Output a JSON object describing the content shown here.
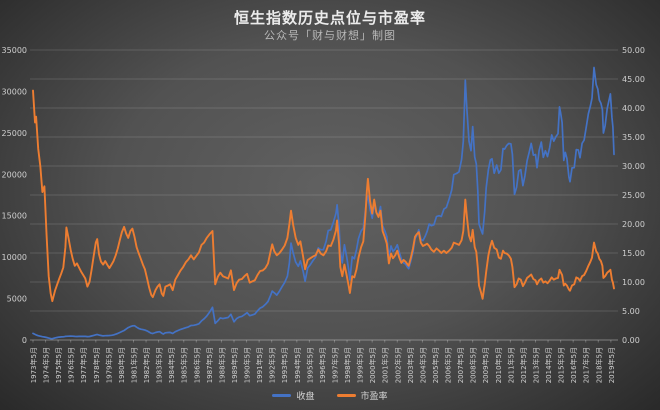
{
  "header": {
    "title": "恒生指数历史点位与市盈率",
    "subtitle": "公众号「财与财想」制图"
  },
  "legend": [
    {
      "label": "收盘",
      "color": "#4472C4"
    },
    {
      "label": "市盈率",
      "color": "#ED7D31"
    }
  ],
  "colors": {
    "background_center": "#616161",
    "background_edge": "#262626",
    "gridline": "rgba(255,255,255,0.14)",
    "axis_line": "rgba(255,255,255,0.35)",
    "tick_text": "#cfcfcf",
    "close_line": "#4472C4",
    "pe_line": "#ED7D31"
  },
  "chart_data": {
    "type": "line",
    "title": "恒生指数历史点位与市盈率",
    "subtitle": "公众号「财与财想」制图",
    "legend_position": "bottom",
    "grid": "horizontal gridlines aligned to right axis ticks",
    "y_left": {
      "series": "收盘",
      "min": 0,
      "max": 35000,
      "ticks": [
        0,
        5000,
        10000,
        15000,
        20000,
        25000,
        30000,
        35000
      ],
      "tick_labels": [
        "0",
        "5000",
        "10000",
        "15000",
        "20000",
        "25000",
        "30000",
        "35000"
      ]
    },
    "y_right": {
      "series": "市盈率",
      "min": 0,
      "max": 50,
      "ticks": [
        0,
        5,
        10,
        15,
        20,
        25,
        30,
        35,
        40,
        45,
        50
      ],
      "tick_labels": [
        "0.00",
        "5.00",
        "10.00",
        "15.00",
        "20.00",
        "25.00",
        "30.00",
        "35.00",
        "40.00",
        "45.00",
        "50.00"
      ]
    },
    "x_axis": {
      "first_label": "1973年5月",
      "last_label": "2019年5月",
      "labels": [
        "1973年5月",
        "1974年5月",
        "1975年5月",
        "1976年5月",
        "1977年5月",
        "1978年5月",
        "1979年5月",
        "1980年5月",
        "1981年5月",
        "1982年5月",
        "1983年5月",
        "1984年5月",
        "1985年5月",
        "1986年5月",
        "1987年5月",
        "1988年5月",
        "1989年5月",
        "1990年5月",
        "1991年5月",
        "1992年5月",
        "1993年5月",
        "1994年5月",
        "1995年5月",
        "1996年5月",
        "1997年5月",
        "1998年5月",
        "1999年5月",
        "2000年5月",
        "2001年5月",
        "2002年5月",
        "2003年5月",
        "2004年5月",
        "2005年5月",
        "2006年5月",
        "2007年5月",
        "2008年5月",
        "2009年5月",
        "2010年5月",
        "2011年5月",
        "2012年5月",
        "2013年5月",
        "2014年5月",
        "2015年5月",
        "2016年5月",
        "2017年5月",
        "2018年5月",
        "2019年5月"
      ],
      "label_years_decimal_start": 1973.42
    },
    "x": [
      1973.42,
      1973.58,
      1973.67,
      1973.83,
      1974.0,
      1974.17,
      1974.33,
      1974.5,
      1974.67,
      1974.83,
      1974.96,
      1975.17,
      1975.33,
      1975.5,
      1975.67,
      1975.83,
      1976.0,
      1976.08,
      1976.25,
      1976.42,
      1976.58,
      1976.75,
      1976.92,
      1977.08,
      1977.25,
      1977.42,
      1977.58,
      1977.75,
      1977.92,
      1978.08,
      1978.25,
      1978.42,
      1978.53,
      1978.67,
      1978.83,
      1979.0,
      1979.17,
      1979.33,
      1979.5,
      1979.67,
      1979.83,
      1980.0,
      1980.17,
      1980.33,
      1980.5,
      1980.67,
      1980.83,
      1981.0,
      1981.17,
      1981.33,
      1981.5,
      1981.67,
      1981.83,
      1982.0,
      1982.17,
      1982.33,
      1982.5,
      1982.67,
      1982.83,
      1982.96,
      1983.17,
      1983.33,
      1983.5,
      1983.67,
      1983.79,
      1983.96,
      1984.17,
      1984.33,
      1984.54,
      1984.75,
      1984.96,
      1985.17,
      1985.38,
      1985.58,
      1985.79,
      1986.0,
      1986.21,
      1986.42,
      1986.63,
      1986.83,
      1987.04,
      1987.25,
      1987.46,
      1987.71,
      1987.92,
      1988.13,
      1988.33,
      1988.54,
      1988.75,
      1988.96,
      1989.17,
      1989.42,
      1989.63,
      1989.83,
      1990.04,
      1990.25,
      1990.46,
      1990.67,
      1990.88,
      1991.08,
      1991.29,
      1991.5,
      1991.71,
      1991.92,
      1992.13,
      1992.33,
      1992.46,
      1992.63,
      1992.83,
      1993.04,
      1993.25,
      1993.46,
      1993.67,
      1993.83,
      1993.96,
      1994.13,
      1994.33,
      1994.54,
      1994.71,
      1994.92,
      1995.08,
      1995.29,
      1995.5,
      1995.71,
      1995.92,
      1996.13,
      1996.33,
      1996.54,
      1996.75,
      1996.92,
      1997.13,
      1997.33,
      1997.54,
      1997.63,
      1997.79,
      1997.88,
      1998.04,
      1998.21,
      1998.38,
      1998.54,
      1998.65,
      1998.83,
      1999.0,
      1999.17,
      1999.33,
      1999.54,
      1999.71,
      1999.88,
      2000.0,
      2000.08,
      2000.25,
      2000.42,
      2000.58,
      2000.75,
      2000.92,
      2001.08,
      2001.25,
      2001.42,
      2001.58,
      2001.75,
      2001.92,
      2002.08,
      2002.25,
      2002.42,
      2002.58,
      2002.75,
      2002.92,
      2003.08,
      2003.25,
      2003.33,
      2003.5,
      2003.67,
      2003.83,
      2003.96,
      2004.13,
      2004.29,
      2004.46,
      2004.63,
      2004.79,
      2004.96,
      2005.13,
      2005.33,
      2005.54,
      2005.75,
      2005.92,
      2006.13,
      2006.33,
      2006.54,
      2006.75,
      2006.92,
      2007.13,
      2007.33,
      2007.54,
      2007.67,
      2007.83,
      2007.96,
      2008.13,
      2008.29,
      2008.42,
      2008.58,
      2008.71,
      2008.83,
      2008.92,
      2009.08,
      2009.21,
      2009.38,
      2009.5,
      2009.67,
      2009.83,
      2009.96,
      2010.13,
      2010.33,
      2010.5,
      2010.67,
      2010.83,
      2010.96,
      2011.13,
      2011.29,
      2011.46,
      2011.58,
      2011.75,
      2011.92,
      2012.08,
      2012.25,
      2012.42,
      2012.58,
      2012.75,
      2012.92,
      2013.08,
      2013.25,
      2013.42,
      2013.54,
      2013.71,
      2013.88,
      2014.04,
      2014.21,
      2014.38,
      2014.54,
      2014.71,
      2014.88,
      2015.04,
      2015.21,
      2015.33,
      2015.42,
      2015.54,
      2015.67,
      2015.79,
      2015.92,
      2016.08,
      2016.17,
      2016.33,
      2016.5,
      2016.67,
      2016.83,
      2016.96,
      2017.13,
      2017.29,
      2017.46,
      2017.63,
      2017.79,
      2017.92,
      2018.08,
      2018.25,
      2018.38,
      2018.5,
      2018.63,
      2018.75,
      2018.83,
      2018.96,
      2019.13,
      2019.29,
      2019.38,
      2019.5,
      2019.58,
      2019.67
    ],
    "series": [
      {
        "name": "收盘",
        "axis": "left",
        "color": "#4472C4",
        "values": [
          800,
          680,
          620,
          520,
          460,
          400,
          360,
          300,
          230,
          170,
          160,
          250,
          300,
          350,
          370,
          390,
          430,
          445,
          455,
          465,
          455,
          440,
          425,
          430,
          435,
          440,
          430,
          415,
          420,
          480,
          560,
          630,
          660,
          590,
          540,
          500,
          520,
          535,
          545,
          570,
          610,
          700,
          800,
          900,
          1020,
          1150,
          1320,
          1500,
          1620,
          1700,
          1720,
          1550,
          1400,
          1300,
          1250,
          1200,
          1100,
          950,
          820,
          780,
          900,
          960,
          1000,
          820,
          720,
          870,
          900,
          920,
          800,
          1000,
          1150,
          1280,
          1380,
          1480,
          1580,
          1750,
          1780,
          1850,
          1950,
          2300,
          2560,
          2880,
          3330,
          3950,
          2000,
          2320,
          2670,
          2580,
          2660,
          2720,
          3100,
          2200,
          2580,
          2760,
          2850,
          3050,
          3300,
          2930,
          3030,
          3130,
          3520,
          3850,
          4010,
          4300,
          4650,
          5400,
          5900,
          5700,
          5420,
          5900,
          6450,
          6950,
          7700,
          9300,
          11700,
          10500,
          9400,
          8900,
          9550,
          8300,
          7100,
          8700,
          9100,
          9600,
          10000,
          11100,
          10900,
          10900,
          11900,
          13200,
          13300,
          14200,
          15300,
          16300,
          13700,
          10700,
          9300,
          11500,
          10100,
          8550,
          7250,
          10050,
          9800,
          10900,
          12250,
          13150,
          13500,
          15700,
          16960,
          17400,
          15800,
          14700,
          16400,
          15400,
          15100,
          16100,
          13800,
          13200,
          12500,
          10000,
          11350,
          10700,
          11000,
          11500,
          10600,
          9750,
          9320,
          9150,
          8750,
          8600,
          9600,
          10600,
          12200,
          12550,
          13300,
          12200,
          12000,
          12500,
          13100,
          14000,
          13800,
          13900,
          14900,
          15000,
          14900,
          15800,
          16000,
          17000,
          18100,
          19960,
          20100,
          20300,
          21800,
          23980,
          31350,
          27810,
          24000,
          22850,
          25750,
          22100,
          21260,
          18000,
          14000,
          13300,
          12810,
          15520,
          18380,
          20570,
          21750,
          21870,
          20120,
          21110,
          20130,
          20540,
          23100,
          23040,
          23480,
          23720,
          23680,
          22400,
          17590,
          18430,
          20390,
          20560,
          18630,
          19800,
          21640,
          22660,
          23730,
          22300,
          22390,
          20800,
          22860,
          23880,
          22040,
          22840,
          22130,
          23190,
          24740,
          23990,
          24510,
          24900,
          28130,
          27420,
          26250,
          21670,
          22640,
          21910,
          19680,
          19110,
          20770,
          20790,
          22980,
          22930,
          22000,
          23740,
          24110,
          25660,
          27320,
          28250,
          29180,
          32890,
          30810,
          30280,
          28960,
          28580,
          27790,
          24980,
          25850,
          27940,
          29050,
          29700,
          26900,
          25700,
          22400
        ]
      },
      {
        "name": "市盈率",
        "axis": "right",
        "color": "#ED7D31",
        "values": [
          43.0,
          37.5,
          38.5,
          33.0,
          30.0,
          25.5,
          26.5,
          18.0,
          11.0,
          8.0,
          6.7,
          8.5,
          9.5,
          10.5,
          11.5,
          12.5,
          16.0,
          19.4,
          17.5,
          15.5,
          14.0,
          12.8,
          13.2,
          12.5,
          11.8,
          11.2,
          10.6,
          9.2,
          10.0,
          12.0,
          14.5,
          16.8,
          17.4,
          14.8,
          13.5,
          13.0,
          13.6,
          13.0,
          12.4,
          13.0,
          13.6,
          14.6,
          15.8,
          17.2,
          18.6,
          19.5,
          18.4,
          17.6,
          18.8,
          19.2,
          17.8,
          16.0,
          15.0,
          14.0,
          13.0,
          12.2,
          10.6,
          9.0,
          7.8,
          7.4,
          8.6,
          9.2,
          9.6,
          8.0,
          7.6,
          9.2,
          9.4,
          9.6,
          8.6,
          10.4,
          11.2,
          12.0,
          12.6,
          13.4,
          13.9,
          14.6,
          13.9,
          14.5,
          15.1,
          16.4,
          16.8,
          17.6,
          18.2,
          18.8,
          9.6,
          10.9,
          11.6,
          11.0,
          10.8,
          10.6,
          12.0,
          8.6,
          9.8,
          10.4,
          10.5,
          11.0,
          11.4,
          9.9,
          10.1,
          10.3,
          11.2,
          11.9,
          12.0,
          12.4,
          13.2,
          15.3,
          16.5,
          15.3,
          14.6,
          15.0,
          15.6,
          16.3,
          17.6,
          20.0,
          22.3,
          19.8,
          17.6,
          16.4,
          17.0,
          14.4,
          12.2,
          13.8,
          14.1,
          14.4,
          14.6,
          15.6,
          14.9,
          14.6,
          15.3,
          16.3,
          16.2,
          17.3,
          18.9,
          20.6,
          16.5,
          12.6,
          11.0,
          13.0,
          11.2,
          9.4,
          8.1,
          11.0,
          10.8,
          12.2,
          14.2,
          16.0,
          17.0,
          21.5,
          25.8,
          27.8,
          24.0,
          21.8,
          24.2,
          22.0,
          21.2,
          22.3,
          18.8,
          17.8,
          16.6,
          13.2,
          14.9,
          14.1,
          14.6,
          15.4,
          14.2,
          13.3,
          13.8,
          13.5,
          13.0,
          12.8,
          14.2,
          15.8,
          17.8,
          18.2,
          18.6,
          16.8,
          16.2,
          16.4,
          16.6,
          16.2,
          15.6,
          15.2,
          15.8,
          15.4,
          15.0,
          15.4,
          15.0,
          15.4,
          15.9,
          16.8,
          16.6,
          16.4,
          17.2,
          18.8,
          24.2,
          21.2,
          18.0,
          17.0,
          19.0,
          16.0,
          15.2,
          12.4,
          9.4,
          8.2,
          7.1,
          9.6,
          11.8,
          14.6,
          16.2,
          17.1,
          15.9,
          15.6,
          14.2,
          14.0,
          15.4,
          15.0,
          14.9,
          14.6,
          14.0,
          12.6,
          9.1,
          9.6,
          10.6,
          10.4,
          9.3,
          9.9,
          10.7,
          11.0,
          11.3,
          10.5,
          10.3,
          9.6,
          10.3,
          10.6,
          9.9,
          10.1,
          9.8,
          10.2,
          10.8,
          10.4,
          10.6,
          10.7,
          12.1,
          11.7,
          11.2,
          9.4,
          9.7,
          9.4,
          8.7,
          8.5,
          9.4,
          9.6,
          10.8,
          10.6,
          10.2,
          11.0,
          11.2,
          11.9,
          12.8,
          13.5,
          14.2,
          16.8,
          15.3,
          14.9,
          14.0,
          13.6,
          12.8,
          10.7,
          11.0,
          11.6,
          11.9,
          12.1,
          10.4,
          9.9,
          8.9
        ]
      }
    ]
  }
}
